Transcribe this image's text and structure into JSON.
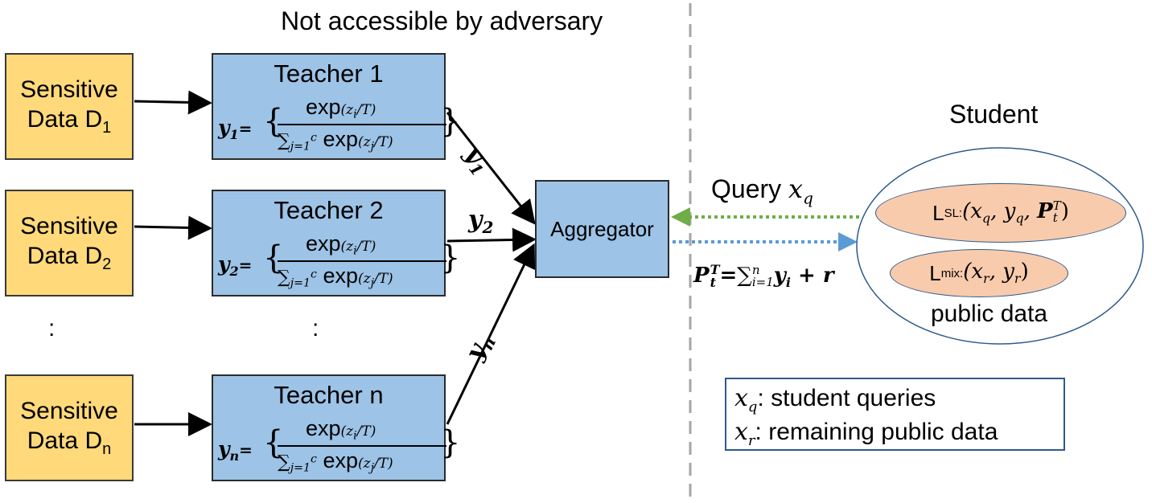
{
  "header": {
    "title": "Not accessible by adversary"
  },
  "sensitive": [
    {
      "line1": "Sensitive",
      "line2": "Data D",
      "sub": "1"
    },
    {
      "line1": "Sensitive",
      "line2": "Data D",
      "sub": "2"
    },
    {
      "line1": "Sensitive",
      "line2": "Data D",
      "sub": "n"
    }
  ],
  "teachers": [
    {
      "title": "Teacher 1",
      "y_label": "y",
      "y_sub": "1",
      "eq": "="
    },
    {
      "title": "Teacher 2",
      "y_label": "y",
      "y_sub": "2",
      "eq": "="
    },
    {
      "title": "Teacher n",
      "y_label": "y",
      "y_sub": "n",
      "eq": "="
    }
  ],
  "formula": {
    "brace_open": "{",
    "brace_close": "}",
    "exp": "exp",
    "num_arg": "(z",
    "num_arg_sub": "i",
    "num_arg_end": "/T)",
    "den_sum": "∑",
    "den_sum_sub": "j=1",
    "den_sum_sup": "c",
    "den_arg": "(z",
    "den_arg_sub": "j",
    "den_arg_end": "/T)"
  },
  "ellipsis": ":",
  "arrow_labels": [
    {
      "text": "y",
      "sub": "1"
    },
    {
      "text": "y",
      "sub": "2"
    },
    {
      "text": "y",
      "sub": "n"
    }
  ],
  "aggregator": {
    "label": "Aggregator"
  },
  "query": {
    "label": "Query ",
    "var": "x",
    "var_sub": "q"
  },
  "response": {
    "P": "P",
    "P_sup": "T",
    "P_sub": "t",
    "eq": "=",
    "sum": "∑",
    "sum_sub": "i=1",
    "sum_sup": "n",
    "y": "y",
    "y_sub": "i",
    "plus_r": " + r"
  },
  "student": {
    "title": "Student",
    "public_label": "public data",
    "loss_sl": {
      "L": "L",
      "L_sub": "SL:",
      "args": " (x",
      "a1": "q",
      "mid": ", y",
      "a2": "q",
      "mid2": ", ",
      "P": "P",
      "P_sup": "T",
      "P_sub": "t",
      "end": ")"
    },
    "loss_mix": {
      "L": "L",
      "L_sub": "mix:",
      "args": " (x",
      "a1": "r",
      "mid": ", y",
      "a2": "r",
      "end": ")"
    }
  },
  "legend": {
    "items": [
      {
        "var": "x",
        "sub": "q",
        "text": ": student queries"
      },
      {
        "var": "x",
        "sub": "r",
        "text": ": remaining public data"
      }
    ]
  },
  "colors": {
    "sensitive_fill": "#ffd97a",
    "teacher_fill": "#9dc3e6",
    "oval_fill": "#f8cbad",
    "query_arrow": "#70ad47",
    "response_arrow": "#5b9bd5",
    "divider": "#a6a6a6"
  }
}
